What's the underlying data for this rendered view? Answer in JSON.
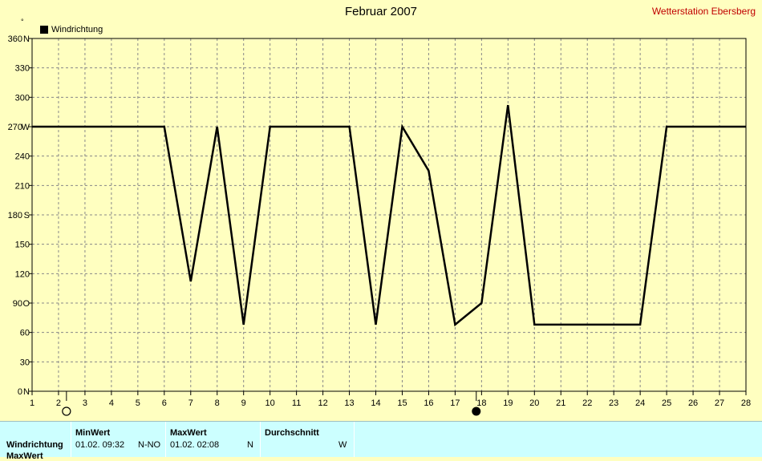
{
  "chart_data": {
    "type": "line",
    "title": "Februar 2007",
    "station": "Wetterstation Ebersberg",
    "y_unit": "°",
    "legend": [
      {
        "name": "Windrichtung",
        "color": "#000000"
      }
    ],
    "xlim": [
      1,
      28
    ],
    "ylim": [
      0,
      360
    ],
    "x_ticks": [
      "1",
      "2",
      "3",
      "4",
      "5",
      "6",
      "7",
      "8",
      "9",
      "10",
      "11",
      "12",
      "13",
      "14",
      "15",
      "16",
      "17",
      "18",
      "19",
      "20",
      "21",
      "22",
      "23",
      "24",
      "25",
      "26",
      "27",
      "28"
    ],
    "y_ticks": [
      {
        "v": 0,
        "label": "0",
        "dir": "N"
      },
      {
        "v": 30,
        "label": "30",
        "dir": ""
      },
      {
        "v": 60,
        "label": "60",
        "dir": ""
      },
      {
        "v": 90,
        "label": "90",
        "dir": "O"
      },
      {
        "v": 120,
        "label": "120",
        "dir": ""
      },
      {
        "v": 150,
        "label": "150",
        "dir": ""
      },
      {
        "v": 180,
        "label": "180",
        "dir": "S"
      },
      {
        "v": 210,
        "label": "210",
        "dir": ""
      },
      {
        "v": 240,
        "label": "240",
        "dir": ""
      },
      {
        "v": 270,
        "label": "270",
        "dir": "W"
      },
      {
        "v": 300,
        "label": "300",
        "dir": ""
      },
      {
        "v": 330,
        "label": "330",
        "dir": ""
      },
      {
        "v": 360,
        "label": "360",
        "dir": "N"
      }
    ],
    "series": [
      {
        "name": "Windrichtung",
        "color": "#000000",
        "points": [
          [
            1,
            270
          ],
          [
            2,
            270
          ],
          [
            3,
            270
          ],
          [
            4,
            270
          ],
          [
            5,
            270
          ],
          [
            6,
            270
          ],
          [
            7,
            112
          ],
          [
            8,
            270
          ],
          [
            9,
            68
          ],
          [
            10,
            270
          ],
          [
            11,
            270
          ],
          [
            12,
            270
          ],
          [
            13,
            270
          ],
          [
            14,
            68
          ],
          [
            15,
            270
          ],
          [
            16,
            225
          ],
          [
            17,
            68
          ],
          [
            18,
            90
          ],
          [
            19,
            292
          ],
          [
            20,
            68
          ],
          [
            21,
            68
          ],
          [
            22,
            68
          ],
          [
            23,
            68
          ],
          [
            24,
            68
          ],
          [
            25,
            270
          ],
          [
            26,
            270
          ],
          [
            27,
            270
          ],
          [
            28,
            270
          ]
        ]
      }
    ],
    "moon_phases": [
      {
        "x": 2.3,
        "phase": "full"
      },
      {
        "x": 17.8,
        "phase": "new"
      }
    ],
    "grid": true
  },
  "stats": {
    "headers": {
      "min": "MinWert",
      "max": "MaxWert",
      "avg": "Durchschnitt"
    },
    "row_label": "Windrichtung",
    "row_label2": "MaxWert",
    "min_value": "01.02.  09:32",
    "min_dir": "N-NO",
    "max_value": "01.02.  02:08",
    "max_dir": "N",
    "avg_dir": "W"
  }
}
